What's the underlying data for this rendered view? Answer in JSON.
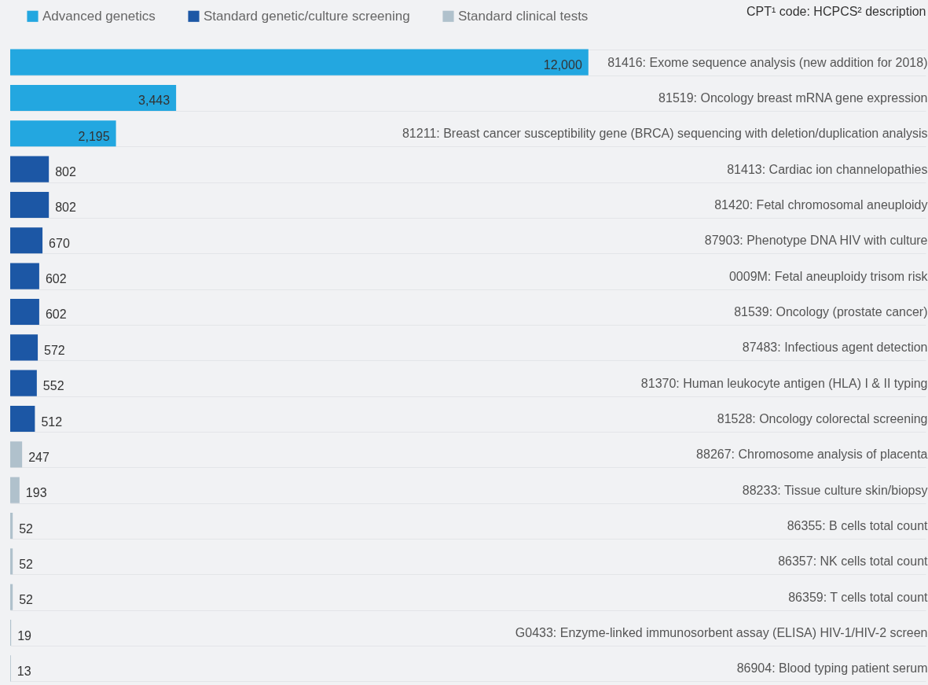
{
  "chart_data": {
    "type": "bar",
    "orientation": "horizontal",
    "ylabel": "CPT¹ code: HCPCS² description",
    "categories": [
      "81416: Exome sequence analysis (new addition for 2018)",
      "81519: Oncology breast mRNA gene expression",
      "81211: Breast cancer susceptibility gene (BRCA) sequencing with deletion/duplication analysis",
      "81413: Cardiac ion channelopathies",
      "81420: Fetal chromosomal aneuploidy",
      "87903: Phenotype DNA HIV with culture",
      "0009M: Fetal aneuploidy trisom risk",
      "81539: Oncology (prostate cancer)",
      "87483: Infectious agent detection",
      "81370: Human leukocyte antigen (HLA) I & II typing",
      "81528: Oncology colorectal screening",
      "88267: Chromosome analysis of placenta",
      "88233: Tissue culture skin/biopsy",
      "86355: B cells total count",
      "86357: NK cells total count",
      "86359: T cells total count",
      "G0433: Enzyme-linked immunosorbent assay (ELISA) HIV-1/HIV-2 screen",
      "86904: Blood typing patient serum"
    ],
    "series": [
      {
        "name": "Advanced genetics",
        "color": "#23a7e0",
        "values": [
          12000,
          3443,
          2195,
          null,
          null,
          null,
          null,
          null,
          null,
          null,
          null,
          null,
          null,
          null,
          null,
          null,
          null,
          null
        ],
        "value_labels": [
          "12,000",
          "3,443",
          "2,195",
          null,
          null,
          null,
          null,
          null,
          null,
          null,
          null,
          null,
          null,
          null,
          null,
          null,
          null,
          null
        ]
      },
      {
        "name": "Standard genetic/culture screening",
        "color": "#1c57a5",
        "values": [
          null,
          null,
          null,
          802,
          802,
          670,
          602,
          602,
          572,
          552,
          512,
          null,
          null,
          null,
          null,
          null,
          null,
          null
        ]
      },
      {
        "name": "Standard clinical tests",
        "color": "#b0c1cc",
        "values": [
          null,
          null,
          null,
          null,
          null,
          null,
          null,
          null,
          null,
          null,
          null,
          247,
          193,
          52,
          52,
          52,
          19,
          13
        ]
      }
    ],
    "xlim": [
      0,
      19000
    ],
    "data_labels": true,
    "grid": "y",
    "legend": "top left"
  }
}
